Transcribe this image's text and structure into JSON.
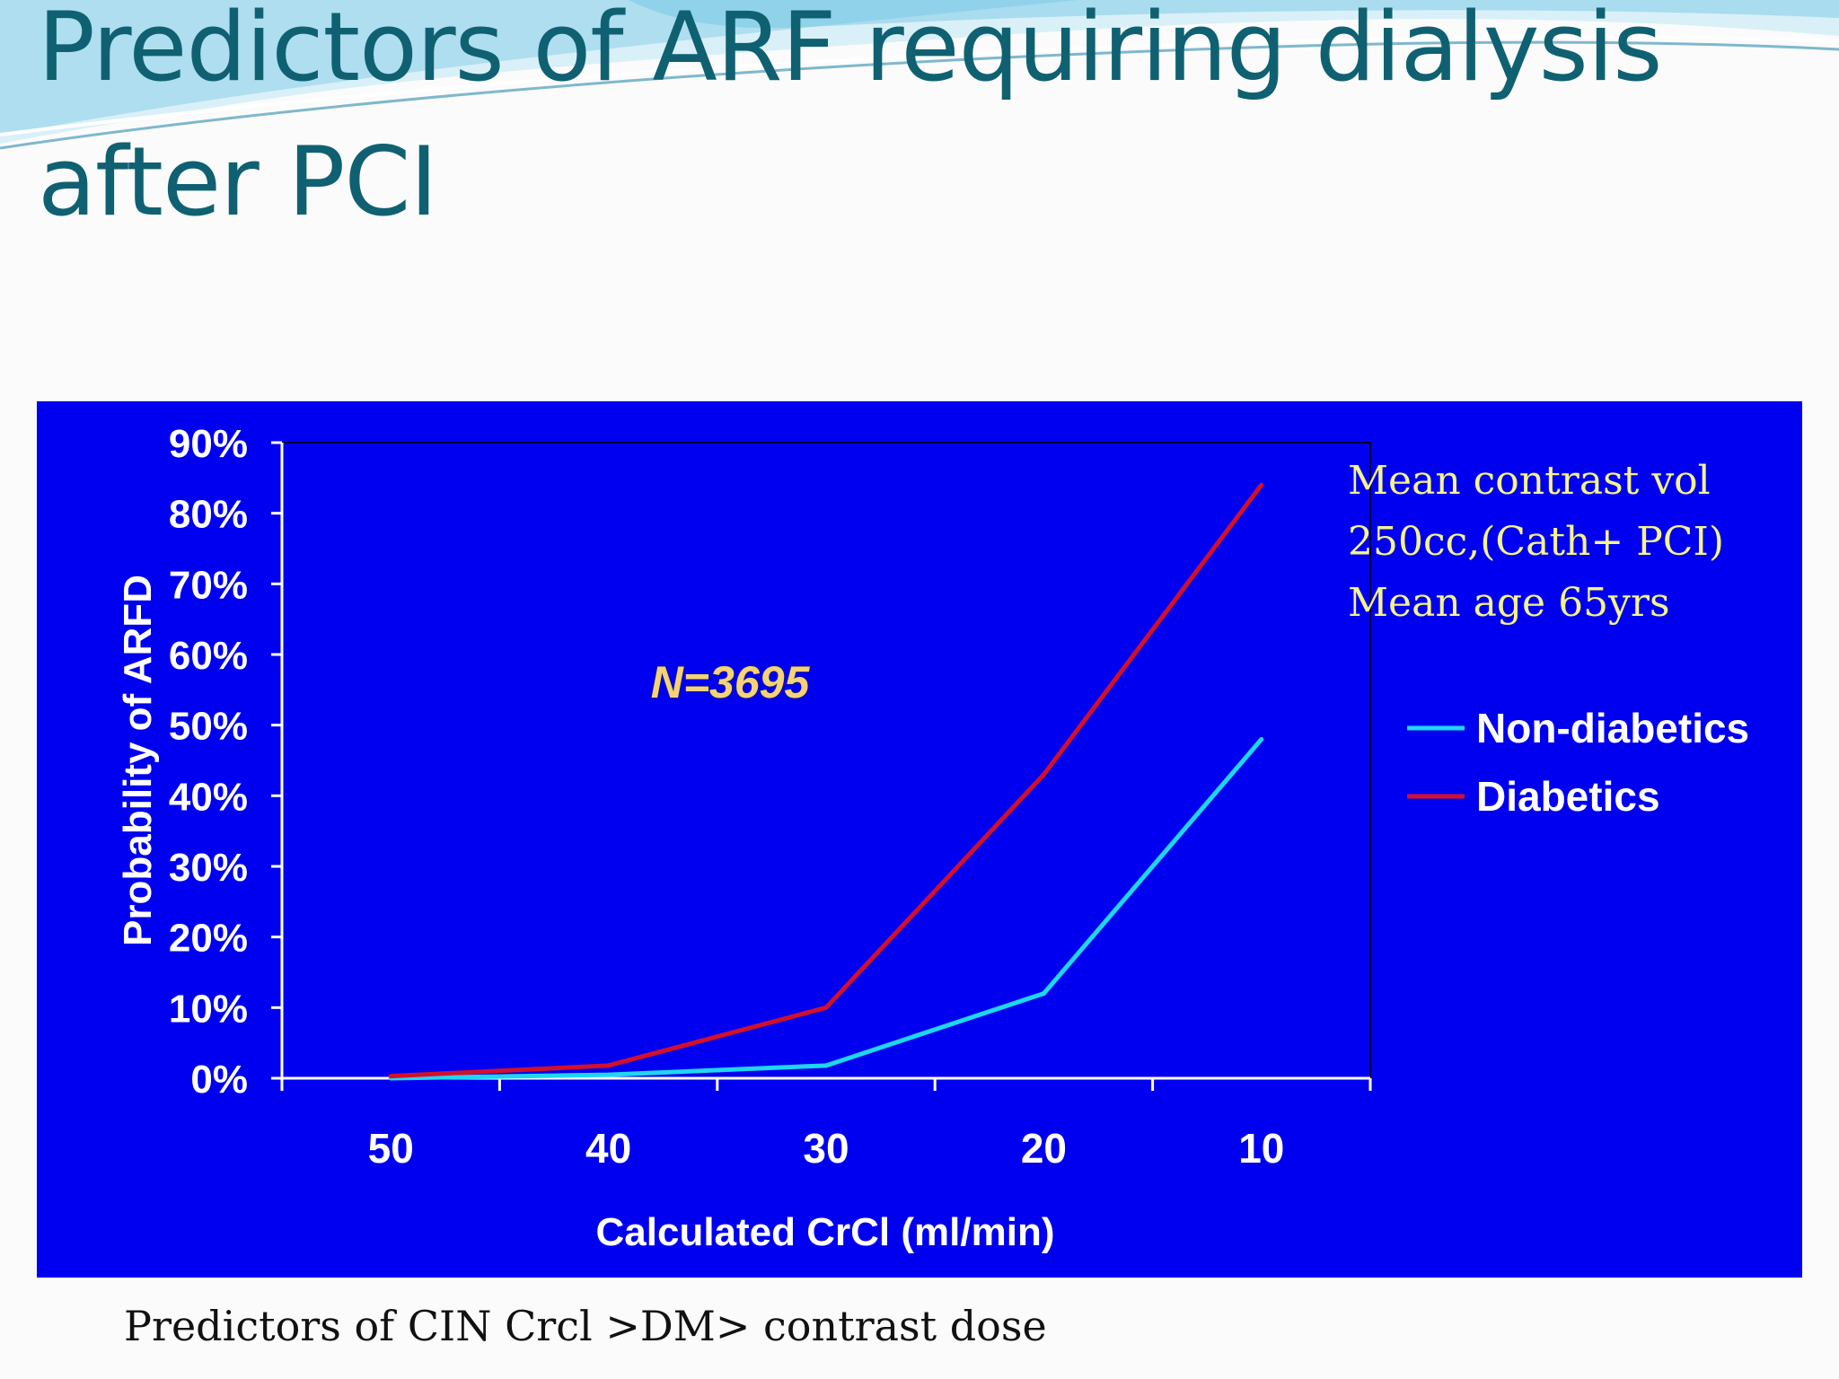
{
  "slide": {
    "title_line1": "Predictors of ARF requiring dialysis",
    "title_line2": "after PCI",
    "footer": "Predictors of CIN Crcl >DM> contrast dose"
  },
  "note": {
    "line1": "Mean contrast vol",
    "line2": "250cc,(Cath+ PCI)",
    "line3": "Mean age 65yrs"
  },
  "chart_data": {
    "type": "line",
    "title": "",
    "xlabel": "Calculated CrCl (ml/min)",
    "ylabel": "Probability of ARFD",
    "categories": [
      "50",
      "40",
      "30",
      "20",
      "10"
    ],
    "yticks": [
      "0%",
      "10%",
      "20%",
      "30%",
      "40%",
      "50%",
      "60%",
      "70%",
      "80%",
      "90%"
    ],
    "ylim": [
      0,
      90
    ],
    "grid": false,
    "legend_position": "right",
    "annotation": "N=3695",
    "series": [
      {
        "name": "Non-diabetics",
        "color": "#1fd6f2",
        "values": [
          0,
          0.5,
          1.8,
          12,
          48
        ]
      },
      {
        "name": "Diabetics",
        "color": "#d2102a",
        "values": [
          0.3,
          1.8,
          10,
          43,
          84
        ]
      }
    ]
  },
  "colors": {
    "panel_background": "#0000f0",
    "title_text": "#0f6172",
    "note_text": "#f5f38a",
    "annotation_text": "#f3d27a"
  }
}
